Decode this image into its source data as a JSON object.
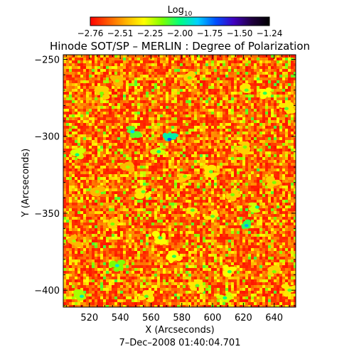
{
  "chart_data": {
    "type": "heatmap",
    "title": "Hinode SOT/SP – MERLIN : Degree of Polarization",
    "xlabel": "X (Arcseconds)",
    "ylabel": "Y (Arcseconds)",
    "timestamp": "7–Dec–2008 01:40:04.701",
    "colorbar": {
      "label_main": "Log",
      "label_sub": "10",
      "ticks": [
        "−2.76",
        "−2.51",
        "−2.25",
        "−2.00",
        "−1.75",
        "−1.50",
        "−1.24"
      ],
      "range": [
        -2.76,
        -1.24
      ],
      "colors": [
        "#ff0000",
        "#ff5a00",
        "#ffb400",
        "#ffff00",
        "#7fff00",
        "#00ff80",
        "#00d0ff",
        "#0050ff",
        "#4000c0",
        "#200040",
        "#000000"
      ]
    },
    "xlim": [
      503,
      654
    ],
    "ylim": [
      -411,
      -247
    ],
    "x_ticks": [
      520,
      540,
      560,
      580,
      600,
      620,
      640
    ],
    "x_tick_labels": [
      "520",
      "540",
      "560",
      "580",
      "600",
      "620",
      "640"
    ],
    "y_ticks": [
      -250,
      -300,
      -350,
      -400
    ],
    "y_tick_labels": [
      "−250",
      "−300",
      "−350",
      "−400"
    ],
    "field_description_values": {
      "background_level": -2.6,
      "patches": [
        {
          "x": 538,
          "y": -384,
          "value": -1.9
        },
        {
          "x": 515,
          "y": -404,
          "value": -1.95
        },
        {
          "x": 572,
          "y": -302,
          "value": -1.7
        },
        {
          "x": 565,
          "y": -310,
          "value": -2.0
        },
        {
          "x": 548,
          "y": -297,
          "value": -1.85
        },
        {
          "x": 512,
          "y": -312,
          "value": -2.0
        },
        {
          "x": 566,
          "y": -366,
          "value": -2.05
        },
        {
          "x": 575,
          "y": -378,
          "value": -2.05
        },
        {
          "x": 590,
          "y": -397,
          "value": -2.1
        },
        {
          "x": 622,
          "y": -358,
          "value": -1.8
        },
        {
          "x": 629,
          "y": -346,
          "value": -2.0
        },
        {
          "x": 634,
          "y": -272,
          "value": -2.05
        },
        {
          "x": 648,
          "y": -282,
          "value": -2.1
        },
        {
          "x": 622,
          "y": -270,
          "value": -2.1
        },
        {
          "x": 611,
          "y": -388,
          "value": -2.05
        },
        {
          "x": 608,
          "y": -405,
          "value": -2.0
        },
        {
          "x": 599,
          "y": -323,
          "value": -2.1
        },
        {
          "x": 613,
          "y": -338,
          "value": -2.15
        },
        {
          "x": 600,
          "y": -352,
          "value": -2.1
        },
        {
          "x": 582,
          "y": -326,
          "value": -2.15
        },
        {
          "x": 555,
          "y": -336,
          "value": -2.1
        },
        {
          "x": 535,
          "y": -357,
          "value": -2.15
        },
        {
          "x": 545,
          "y": -320,
          "value": -2.2
        },
        {
          "x": 528,
          "y": -272,
          "value": -2.15
        },
        {
          "x": 538,
          "y": -264,
          "value": -2.2
        },
        {
          "x": 585,
          "y": -262,
          "value": -2.15
        },
        {
          "x": 650,
          "y": -400,
          "value": -2.1
        },
        {
          "x": 640,
          "y": -388,
          "value": -2.15
        },
        {
          "x": 587,
          "y": -348,
          "value": -2.1
        },
        {
          "x": 621,
          "y": -307,
          "value": -2.15
        },
        {
          "x": 640,
          "y": -330,
          "value": -2.15
        },
        {
          "x": 557,
          "y": -404,
          "value": -2.1
        },
        {
          "x": 525,
          "y": -336,
          "value": -2.2
        },
        {
          "x": 510,
          "y": -368,
          "value": -2.2
        }
      ]
    }
  }
}
